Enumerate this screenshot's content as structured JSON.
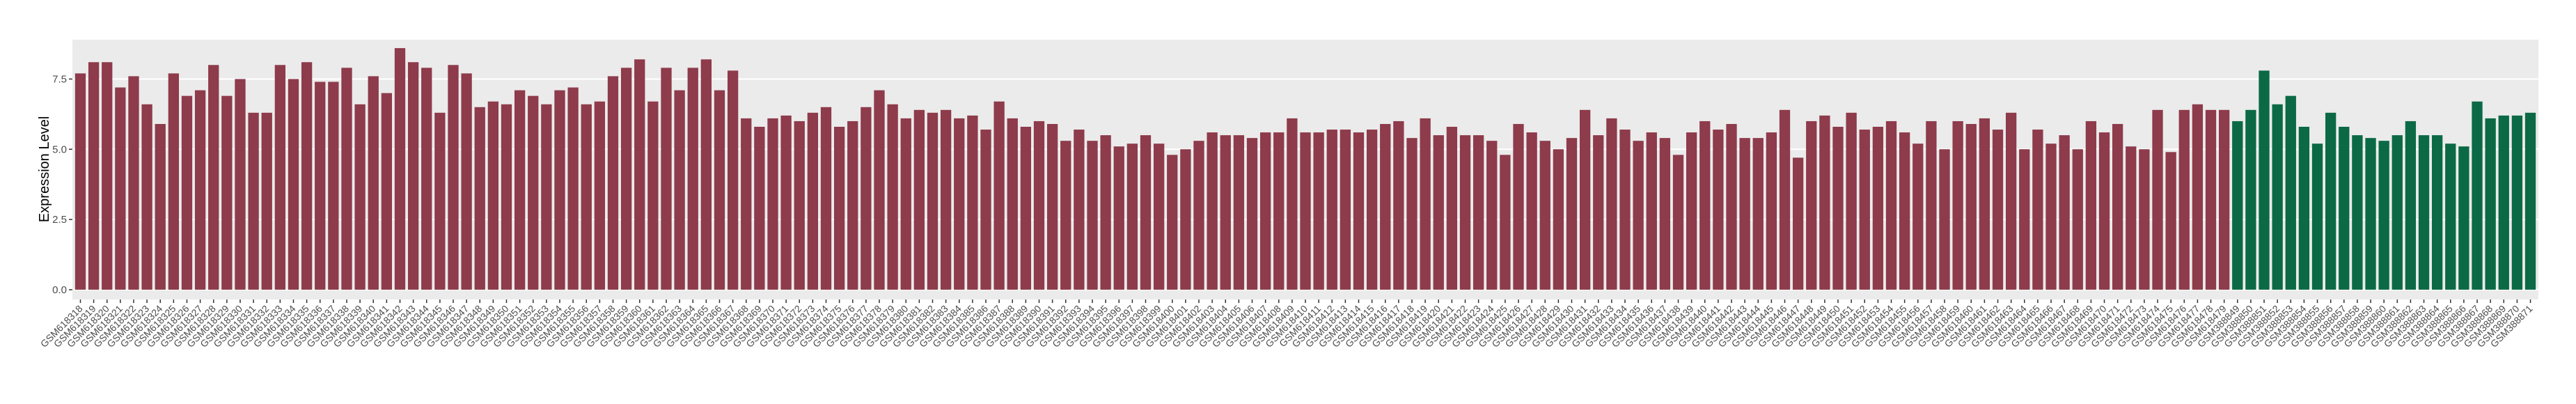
{
  "chart_data": {
    "type": "bar",
    "y_label": "Expression Level",
    "categories": [
      "GSM618318",
      "GSM618319",
      "GSM618320",
      "GSM618321",
      "GSM618322",
      "GSM618323",
      "GSM618324",
      "GSM618325",
      "GSM618326",
      "GSM618327",
      "GSM618328",
      "GSM618329",
      "GSM618330",
      "GSM618331",
      "GSM618332",
      "GSM618333",
      "GSM618334",
      "GSM618335",
      "GSM618336",
      "GSM618337",
      "GSM618338",
      "GSM618339",
      "GSM618340",
      "GSM618341",
      "GSM618342",
      "GSM618343",
      "GSM618344",
      "GSM618345",
      "GSM618346",
      "GSM618347",
      "GSM618348",
      "GSM618349",
      "GSM618350",
      "GSM618351",
      "GSM618352",
      "GSM618353",
      "GSM618354",
      "GSM618355",
      "GSM618356",
      "GSM618357",
      "GSM618358",
      "GSM618359",
      "GSM618360",
      "GSM618361",
      "GSM618362",
      "GSM618363",
      "GSM618364",
      "GSM618365",
      "GSM618366",
      "GSM618367",
      "GSM618368",
      "GSM618369",
      "GSM618370",
      "GSM618371",
      "GSM618372",
      "GSM618373",
      "GSM618374",
      "GSM618375",
      "GSM618376",
      "GSM618377",
      "GSM618378",
      "GSM618379",
      "GSM618380",
      "GSM618381",
      "GSM618382",
      "GSM618383",
      "GSM618384",
      "GSM618385",
      "GSM618386",
      "GSM618387",
      "GSM618388",
      "GSM618389",
      "GSM618390",
      "GSM618391",
      "GSM618392",
      "GSM618393",
      "GSM618394",
      "GSM618395",
      "GSM618396",
      "GSM618397",
      "GSM618398",
      "GSM618399",
      "GSM618400",
      "GSM618401",
      "GSM618402",
      "GSM618403",
      "GSM618404",
      "GSM618405",
      "GSM618406",
      "GSM618407",
      "GSM618408",
      "GSM618409",
      "GSM618410",
      "GSM618411",
      "GSM618412",
      "GSM618413",
      "GSM618414",
      "GSM618415",
      "GSM618416",
      "GSM618417",
      "GSM618418",
      "GSM618419",
      "GSM618420",
      "GSM618421",
      "GSM618422",
      "GSM618423",
      "GSM618424",
      "GSM618425",
      "GSM618426",
      "GSM618427",
      "GSM618428",
      "GSM618429",
      "GSM618430",
      "GSM618431",
      "GSM618432",
      "GSM618433",
      "GSM618434",
      "GSM618435",
      "GSM618436",
      "GSM618437",
      "GSM618438",
      "GSM618439",
      "GSM618440",
      "GSM618441",
      "GSM618442",
      "GSM618443",
      "GSM618444",
      "GSM618445",
      "GSM618446",
      "GSM618447",
      "GSM618448",
      "GSM618449",
      "GSM618450",
      "GSM618451",
      "GSM618452",
      "GSM618453",
      "GSM618454",
      "GSM618455",
      "GSM618456",
      "GSM618457",
      "GSM618458",
      "GSM618459",
      "GSM618460",
      "GSM618461",
      "GSM618462",
      "GSM618463",
      "GSM618464",
      "GSM618465",
      "GSM618466",
      "GSM618467",
      "GSM618468",
      "GSM618469",
      "GSM618470",
      "GSM618471",
      "GSM618472",
      "GSM618473",
      "GSM618474",
      "GSM618475",
      "GSM618476",
      "GSM618477",
      "GSM618478",
      "GSM618479",
      "GSM388849",
      "GSM388850",
      "GSM388851",
      "GSM388852",
      "GSM388853",
      "GSM388854",
      "GSM388855",
      "GSM388856",
      "GSM388857",
      "GSM388858",
      "GSM388859",
      "GSM388860",
      "GSM388861",
      "GSM388862",
      "GSM388863",
      "GSM388864",
      "GSM388865",
      "GSM388866",
      "GSM388867",
      "GSM388868",
      "GSM388869",
      "GSM388870",
      "GSM388871"
    ],
    "series": [
      {
        "color": "#8E3B4B",
        "values": [
          7.7,
          8.1,
          8.1,
          7.2,
          7.6,
          6.6,
          5.9,
          7.7,
          6.9,
          7.1,
          8.0,
          6.9,
          7.5,
          6.3,
          6.3,
          8.0,
          7.5,
          8.1,
          7.4,
          7.4,
          7.9,
          6.6,
          7.6,
          7.0,
          8.6,
          8.1,
          7.9,
          6.3,
          8.0,
          7.7,
          6.5,
          6.7,
          6.6,
          7.1,
          6.9,
          6.6,
          7.1,
          7.2,
          6.6,
          6.7,
          7.6,
          7.9,
          8.2,
          6.7,
          7.9,
          7.1,
          7.9,
          8.2,
          7.1,
          7.8,
          6.1,
          5.8,
          6.1,
          6.2,
          6.0,
          6.3,
          6.5,
          5.8,
          6.0,
          6.5,
          7.1,
          6.6,
          6.1,
          6.4,
          6.3,
          6.4,
          6.1,
          6.2,
          5.7,
          6.7,
          6.1,
          5.8,
          6.0,
          5.9,
          5.3,
          5.7,
          5.3,
          5.5,
          5.1,
          5.2,
          5.5,
          5.2,
          4.8,
          5.0,
          5.3,
          5.6,
          5.5,
          5.5,
          5.4,
          5.6,
          5.6,
          6.1,
          5.6,
          5.6,
          5.7,
          5.7,
          5.6,
          5.7,
          5.9,
          6.0,
          5.4,
          6.1,
          5.5,
          5.8,
          5.5,
          5.5,
          5.3,
          4.8,
          5.9,
          5.6,
          5.3,
          5.0,
          5.4,
          6.4,
          5.5,
          6.1,
          5.7,
          5.3,
          5.6,
          5.4,
          4.8,
          5.6,
          6.0,
          5.7,
          5.9,
          5.4,
          5.4,
          5.6,
          6.4,
          4.7,
          6.0,
          6.2,
          5.8,
          6.3,
          5.7,
          5.8,
          6.0,
          5.6,
          5.2,
          6.0,
          5.0,
          6.0,
          5.9,
          6.1,
          5.7,
          6.3,
          5.0,
          5.7,
          5.2,
          5.5,
          5.0,
          6.0,
          5.6,
          5.9,
          5.1,
          5.0,
          6.4,
          4.9,
          6.4,
          6.6,
          6.4,
          6.4,
          null,
          null,
          null,
          null,
          null,
          null,
          null,
          null,
          null,
          null,
          null,
          null,
          null,
          null,
          null,
          null,
          null,
          null,
          null,
          null,
          null,
          null,
          null
        ]
      },
      {
        "color": "#0B6A45",
        "values": [
          null,
          null,
          null,
          null,
          null,
          null,
          null,
          null,
          null,
          null,
          null,
          null,
          null,
          null,
          null,
          null,
          null,
          null,
          null,
          null,
          null,
          null,
          null,
          null,
          null,
          null,
          null,
          null,
          null,
          null,
          null,
          null,
          null,
          null,
          null,
          null,
          null,
          null,
          null,
          null,
          null,
          null,
          null,
          null,
          null,
          null,
          null,
          null,
          null,
          null,
          null,
          null,
          null,
          null,
          null,
          null,
          null,
          null,
          null,
          null,
          null,
          null,
          null,
          null,
          null,
          null,
          null,
          null,
          null,
          null,
          null,
          null,
          null,
          null,
          null,
          null,
          null,
          null,
          null,
          null,
          null,
          null,
          null,
          null,
          null,
          null,
          null,
          null,
          null,
          null,
          null,
          null,
          null,
          null,
          null,
          null,
          null,
          null,
          null,
          null,
          null,
          null,
          null,
          null,
          null,
          null,
          null,
          null,
          null,
          null,
          null,
          null,
          null,
          null,
          null,
          null,
          null,
          null,
          null,
          null,
          null,
          null,
          null,
          null,
          null,
          null,
          null,
          null,
          null,
          null,
          null,
          null,
          null,
          null,
          null,
          null,
          null,
          null,
          null,
          null,
          null,
          null,
          null,
          null,
          null,
          null,
          null,
          null,
          null,
          null,
          null,
          null,
          null,
          null,
          null,
          null,
          null,
          null,
          null,
          null,
          null,
          null,
          6.0,
          6.4,
          7.8,
          6.6,
          6.9,
          5.8,
          5.2,
          6.3,
          5.8,
          5.5,
          5.4,
          5.3,
          5.5,
          6.0,
          5.5,
          5.5,
          5.2,
          5.1,
          6.7,
          6.1,
          6.2,
          6.2,
          6.3
        ]
      }
    ],
    "ylim": [
      -0.35,
      8.9
    ],
    "yticks": [
      {
        "value": 0,
        "label": "0.0"
      },
      2.5,
      {
        "value": 5,
        "label": "5.0"
      },
      7.5
    ],
    "grid": true
  }
}
